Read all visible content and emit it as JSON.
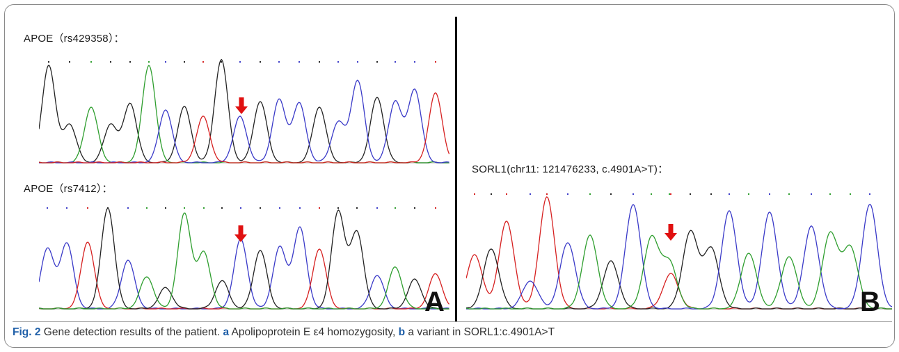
{
  "panel_a": {
    "top_label": "APOE（rs429358）：",
    "bottom_label": "APOE（rs7412）：",
    "letter": "A"
  },
  "panel_b": {
    "label": "SORL1(chr11: 121476233, c.4901A>T)：",
    "letter": "B"
  },
  "caption": {
    "fig": "Fig. 2",
    "text1": " Gene detection results of the patient. ",
    "a": "a",
    "text2": " Apolipoprotein E ε4 homozygosity, ",
    "b": "b",
    "text3": " a variant in SORL1:c.4901A>T"
  },
  "colors": {
    "A": "#2e9e2e",
    "C": "#3a3ac8",
    "G": "#222222",
    "T": "#d62020",
    "arrow": "#e01010"
  }
}
